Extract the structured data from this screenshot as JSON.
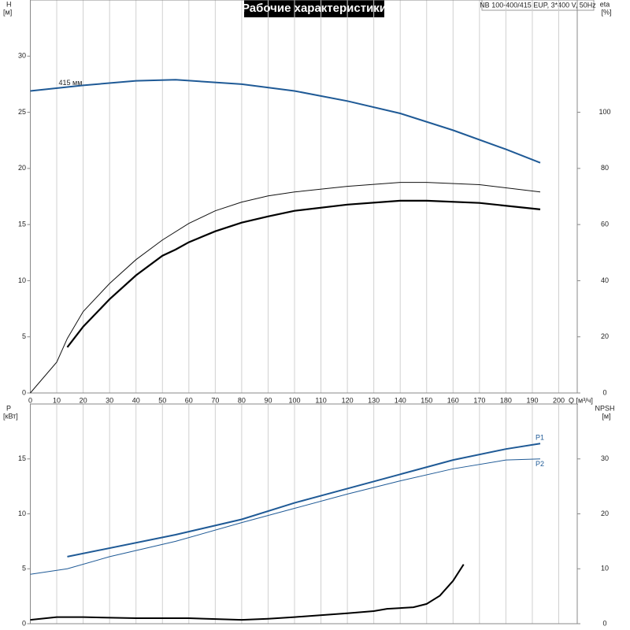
{
  "chart_data": [
    {
      "type": "line",
      "title": "Рабочие характеристики",
      "subtitle": "NB 100-400/415 EUP, 3*400 V, 50Hz",
      "ylabel": "H",
      "yunit": "[м]",
      "y2label": "eta",
      "y2unit": "[%]",
      "xlabel": "Q [м³/ч]",
      "xlim": [
        0,
        207
      ],
      "xticks": [
        0,
        10,
        20,
        30,
        40,
        50,
        60,
        70,
        80,
        90,
        100,
        110,
        120,
        130,
        140,
        150,
        160,
        170,
        180,
        190,
        200
      ],
      "ylim": [
        0,
        35
      ],
      "yticks": [
        0,
        5,
        10,
        15,
        20,
        25,
        30
      ],
      "y2lim": [
        0,
        140
      ],
      "y2ticks": [
        0,
        20,
        40,
        60,
        80,
        100
      ],
      "grid": true,
      "series": [
        {
          "color": "#1f5a96",
          "width": 2,
          "label": "415 мм",
          "x": [
            0,
            20,
            40,
            55,
            80,
            100,
            120,
            140,
            160,
            180,
            193
          ],
          "values": [
            26.9,
            27.4,
            27.8,
            27.9,
            27.5,
            26.9,
            26.0,
            24.9,
            23.4,
            21.7,
            20.5
          ]
        },
        {
          "color": "#111111",
          "width": 1,
          "axis": "y2",
          "x": [
            0,
            10,
            14,
            20,
            30,
            40,
            50,
            60,
            70,
            80,
            90,
            100,
            120,
            140,
            150,
            170,
            193
          ],
          "values": [
            0,
            11,
            19.4,
            29,
            39,
            47.5,
            54.5,
            60.4,
            64.9,
            68,
            70.2,
            71.6,
            73.6,
            75,
            75,
            74.2,
            71.6
          ]
        },
        {
          "color": "#000000",
          "width": 2.2,
          "axis": "y2",
          "x": [
            14,
            20,
            30,
            40,
            50,
            55,
            60,
            70,
            80,
            90,
            100,
            120,
            140,
            150,
            170,
            193
          ],
          "values": [
            16.3,
            23.6,
            33.4,
            41.9,
            48.9,
            51.1,
            53.7,
            57.6,
            60.7,
            62.9,
            64.9,
            67.1,
            68.5,
            68.5,
            67.7,
            65.4
          ]
        }
      ]
    },
    {
      "type": "line",
      "ylabel": "P",
      "yunit": "[кВт]",
      "y2label": "NPSH",
      "y2unit": "[м]",
      "xlim": [
        0,
        207
      ],
      "ylim": [
        0,
        20
      ],
      "yticks": [
        0,
        5,
        10,
        15
      ],
      "y2lim": [
        0,
        40
      ],
      "y2ticks": [
        0,
        10,
        20,
        30
      ],
      "series": [
        {
          "name": "P1",
          "color": "#1f5a96",
          "width": 2,
          "x": [
            14,
            55,
            80,
            100,
            120,
            140,
            160,
            180,
            193
          ],
          "values": [
            6.1,
            8.1,
            9.5,
            11.0,
            12.3,
            13.6,
            14.9,
            15.9,
            16.4
          ]
        },
        {
          "name": "P2",
          "color": "#1f5a96",
          "width": 1,
          "x": [
            0,
            14,
            30,
            55,
            80,
            100,
            120,
            140,
            160,
            180,
            193
          ],
          "values": [
            4.5,
            5.0,
            6.1,
            7.5,
            9.2,
            10.5,
            11.8,
            13.0,
            14.1,
            14.9,
            15.0
          ]
        },
        {
          "color": "#000000",
          "width": 2,
          "axis": "y2",
          "x": [
            0,
            10,
            20,
            40,
            60,
            80,
            90,
            100,
            120,
            130,
            135,
            145,
            150,
            155,
            160,
            164
          ],
          "values": [
            0.7,
            1.2,
            1.2,
            1.0,
            1.0,
            0.7,
            0.9,
            1.2,
            1.9,
            2.3,
            2.7,
            3.0,
            3.6,
            5.1,
            7.8,
            10.8
          ]
        }
      ]
    }
  ]
}
